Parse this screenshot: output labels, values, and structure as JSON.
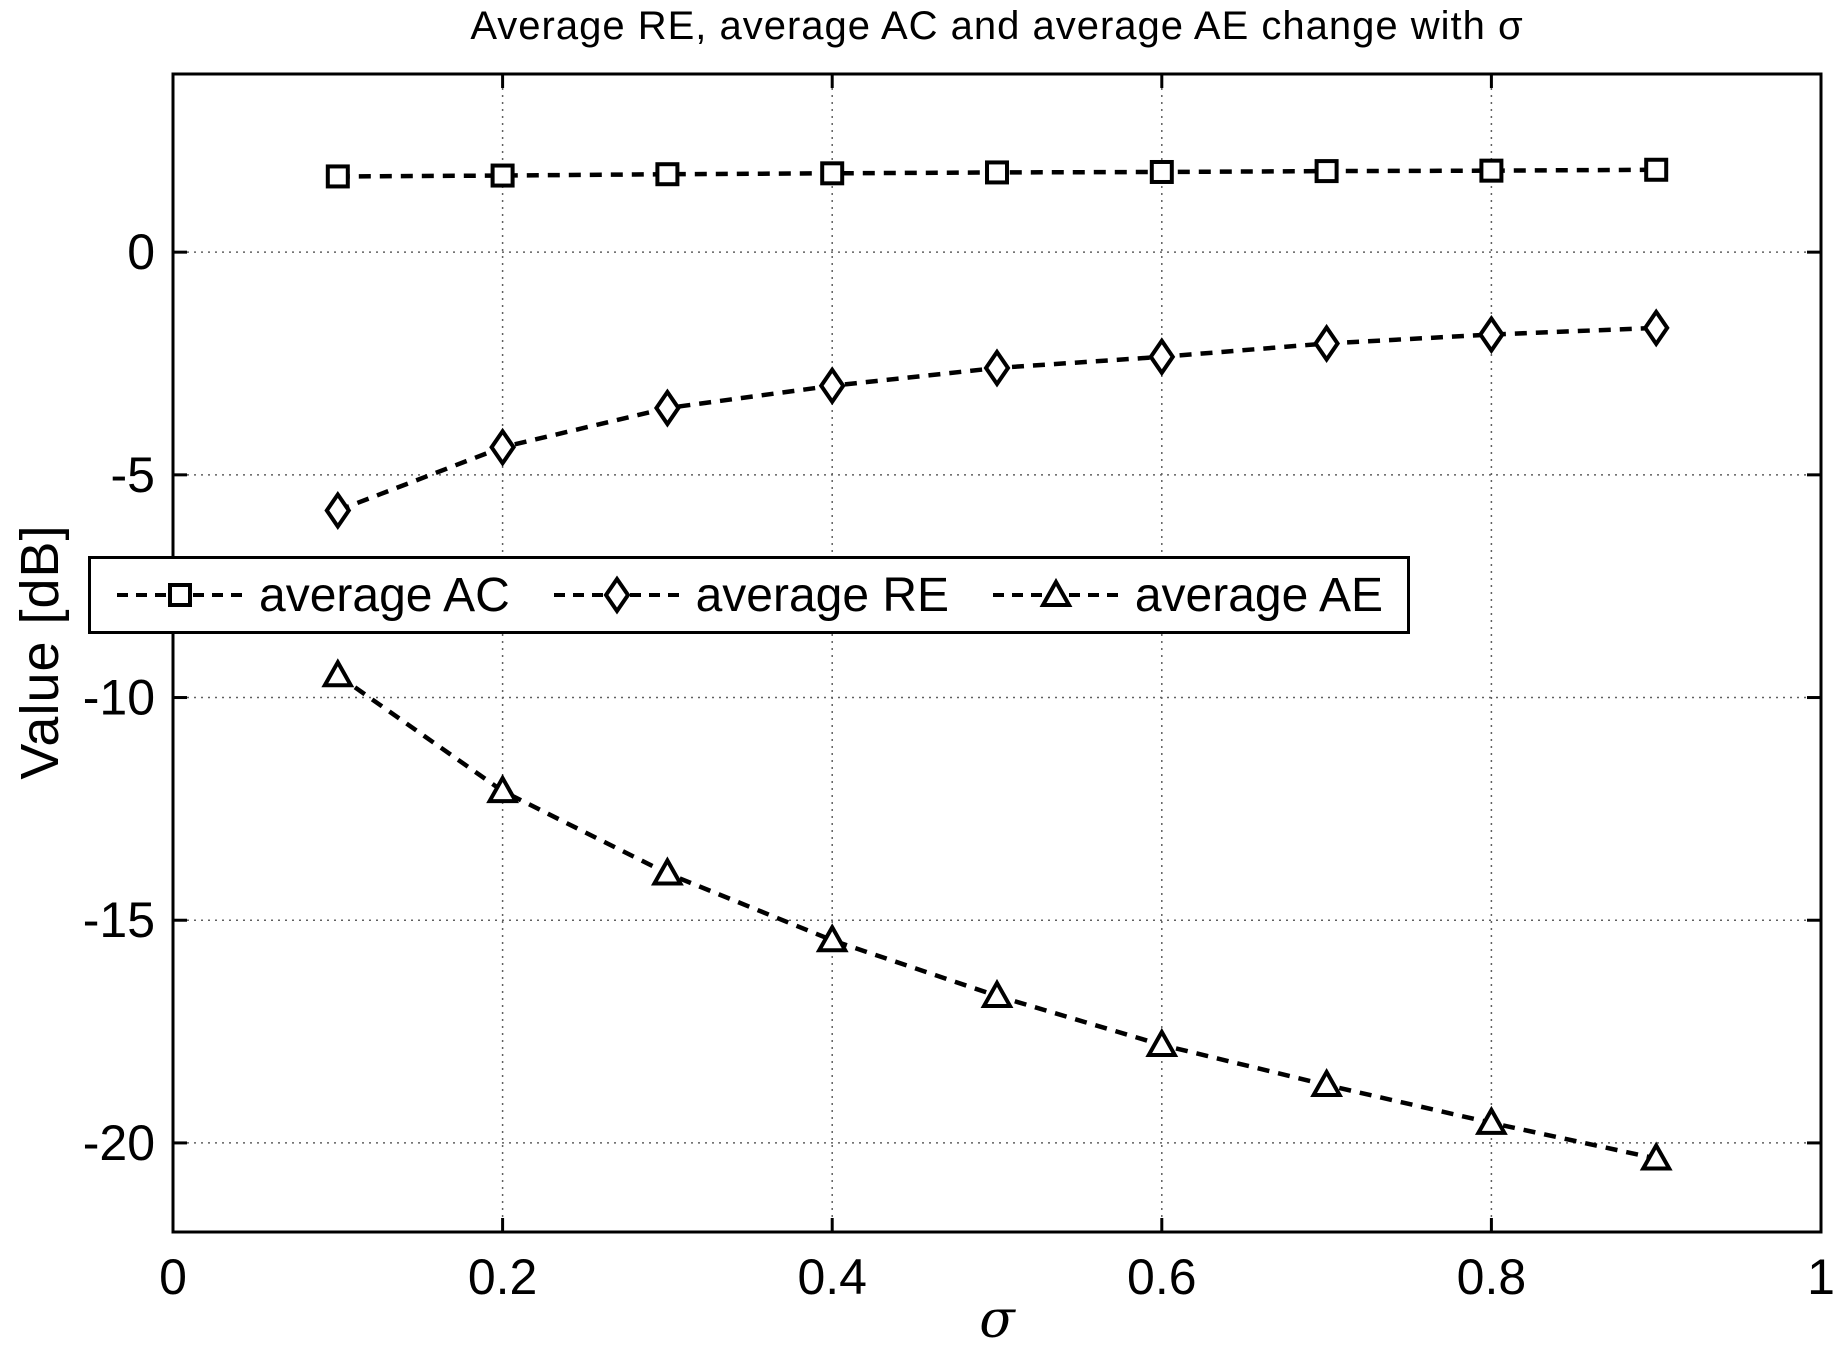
{
  "title": "Average RE, average AC and average AE change with σ",
  "axes": {
    "xlabel": "σ",
    "ylabel": "Value [dB]",
    "x_tick_labels": [
      "0",
      "0.2",
      "0.4",
      "0.6",
      "0.8",
      "1"
    ],
    "y_tick_labels": [
      "0",
      "-5",
      "-10",
      "-15",
      "-20"
    ]
  },
  "colors": {
    "line": "#000000",
    "grid": "#606060",
    "background": "#ffffff"
  },
  "chart_data": {
    "type": "line",
    "title": "Average RE, average AC and average AE change with σ",
    "xlabel": "σ",
    "ylabel": "Value [dB]",
    "xlim": [
      0,
      1
    ],
    "ylim": [
      -22,
      4
    ],
    "x_ticks": [
      0,
      0.2,
      0.4,
      0.6,
      0.8,
      1
    ],
    "y_ticks": [
      0,
      -5,
      -10,
      -15,
      -20
    ],
    "grid": true,
    "grid_style": "dotted",
    "line_style": "dashed",
    "legend_position": "inside-left-horizontal",
    "x": [
      0.1,
      0.2,
      0.3,
      0.4,
      0.5,
      0.6,
      0.7,
      0.8,
      0.9
    ],
    "series": [
      {
        "name": "average AC",
        "marker": "square",
        "color": "#000000",
        "values": [
          1.7,
          1.72,
          1.75,
          1.77,
          1.79,
          1.8,
          1.82,
          1.83,
          1.85
        ]
      },
      {
        "name": "average RE",
        "marker": "diamond",
        "color": "#000000",
        "values": [
          -5.8,
          -4.38,
          -3.5,
          -3.0,
          -2.6,
          -2.35,
          -2.05,
          -1.85,
          -1.7
        ]
      },
      {
        "name": "average AE",
        "marker": "triangle",
        "color": "#000000",
        "values": [
          -9.5,
          -12.1,
          -13.95,
          -15.45,
          -16.7,
          -17.8,
          -18.7,
          -19.55,
          -20.35
        ]
      }
    ]
  }
}
